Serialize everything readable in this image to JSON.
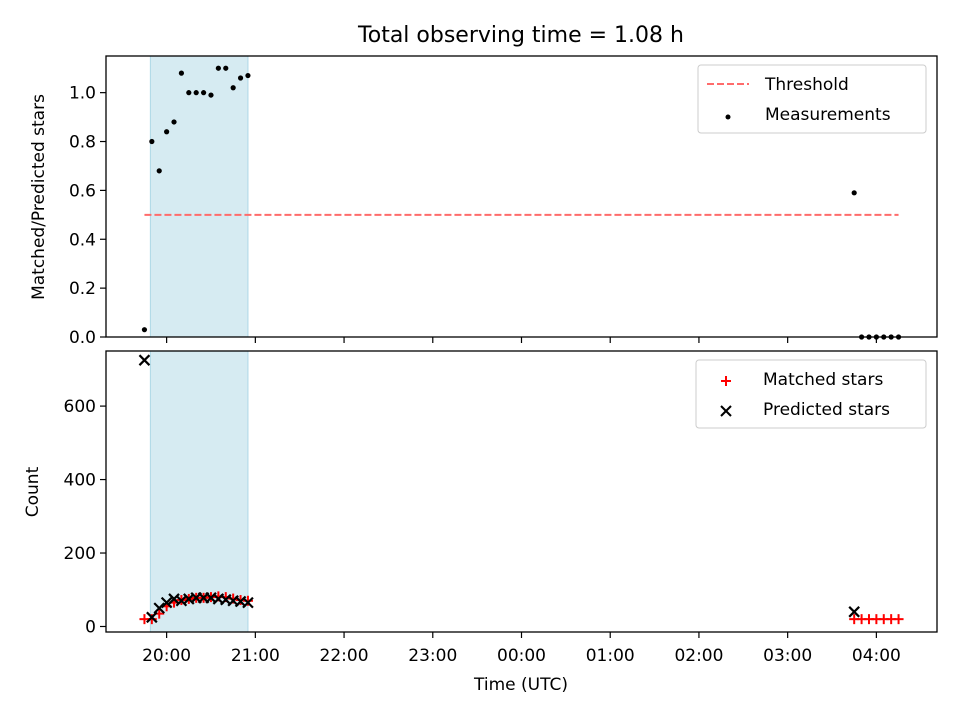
{
  "figure": {
    "title": "Total observing time = 1.08 h"
  },
  "chart_data": [
    {
      "type": "scatter",
      "ylabel": "Matched/Predicted stars",
      "xlim": [
        "19:19",
        "04:41"
      ],
      "ylim": [
        0,
        1.15
      ],
      "yticks": [
        "0.0",
        "0.2",
        "0.4",
        "0.6",
        "0.8",
        "1.0"
      ],
      "shaded_interval": [
        "19:49",
        "20:55"
      ],
      "shade_color": "#add8e6",
      "legend": {
        "placement": "top-right",
        "entries": [
          "Threshold",
          "Measurements"
        ]
      },
      "series": [
        {
          "name": "Threshold",
          "style": "dashed-line",
          "color": "#ff6b6b",
          "x": [
            "19:45",
            "04:15"
          ],
          "y": [
            0.5,
            0.5
          ]
        },
        {
          "name": "Measurements",
          "style": "dots",
          "color": "#000000",
          "x": [
            "19:45",
            "19:50",
            "19:55",
            "20:00",
            "20:05",
            "20:10",
            "20:15",
            "20:20",
            "20:25",
            "20:30",
            "20:35",
            "20:40",
            "20:45",
            "20:50",
            "20:55",
            "03:45",
            "03:50",
            "03:55",
            "04:00",
            "04:05",
            "04:10",
            "04:15"
          ],
          "y": [
            0.03,
            0.8,
            0.68,
            0.84,
            0.88,
            1.08,
            1.0,
            1.0,
            1.0,
            0.99,
            1.1,
            1.1,
            1.02,
            1.06,
            1.07,
            0.59,
            0.0,
            0.0,
            0.0,
            0.0,
            0.0,
            0.0
          ]
        }
      ]
    },
    {
      "type": "scatter",
      "xlabel": "Time (UTC)",
      "ylabel": "Count",
      "xlim": [
        "19:19",
        "04:41"
      ],
      "ylim": [
        -15,
        750
      ],
      "yticks": [
        "0",
        "200",
        "400",
        "600"
      ],
      "xticks": [
        "20:00",
        "21:00",
        "22:00",
        "23:00",
        "00:00",
        "01:00",
        "02:00",
        "03:00",
        "04:00"
      ],
      "shaded_interval": [
        "19:49",
        "20:55"
      ],
      "shade_color": "#add8e6",
      "legend": {
        "placement": "top-right",
        "entries": [
          "Matched stars",
          "Predicted stars"
        ]
      },
      "series": [
        {
          "name": "Matched stars",
          "marker": "plus",
          "color": "#ff0000",
          "x": [
            "19:45",
            "19:50",
            "19:55",
            "20:00",
            "20:05",
            "20:10",
            "20:15",
            "20:20",
            "20:25",
            "20:30",
            "20:35",
            "20:40",
            "20:45",
            "20:50",
            "20:55",
            "03:45",
            "03:50",
            "03:55",
            "04:00",
            "04:05",
            "04:10",
            "04:15"
          ],
          "y": [
            20,
            20,
            35,
            55,
            65,
            72,
            75,
            78,
            78,
            80,
            82,
            80,
            76,
            72,
            70,
            20,
            20,
            20,
            20,
            20,
            20,
            20
          ]
        },
        {
          "name": "Predicted stars",
          "marker": "x",
          "color": "#000000",
          "x": [
            "19:45",
            "19:50",
            "19:55",
            "20:00",
            "20:05",
            "20:10",
            "20:15",
            "20:20",
            "20:25",
            "20:30",
            "20:35",
            "20:40",
            "20:45",
            "20:50",
            "20:55",
            "03:45"
          ],
          "y": [
            725,
            25,
            50,
            65,
            75,
            70,
            75,
            78,
            78,
            78,
            75,
            73,
            70,
            68,
            65,
            40
          ]
        }
      ]
    }
  ]
}
